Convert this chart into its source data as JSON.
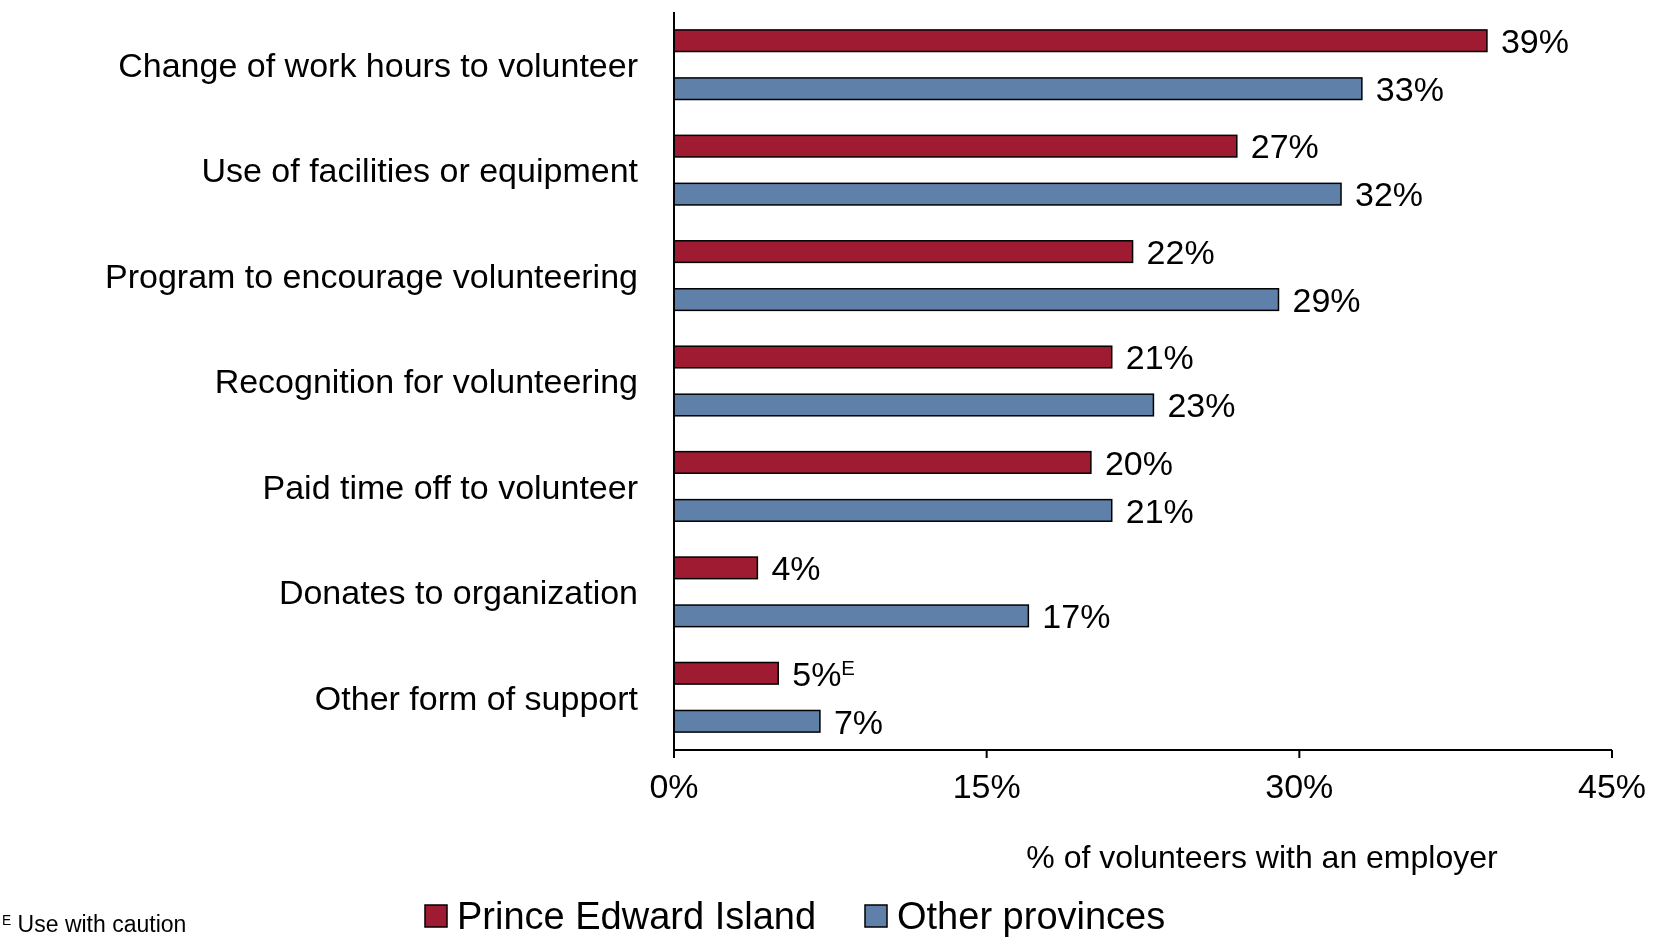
{
  "chart_data": {
    "type": "bar",
    "orientation": "horizontal",
    "categories": [
      "Change of work hours to volunteer",
      "Use of facilities or equipment",
      "Program to encourage volunteering",
      "Recognition for volunteering",
      "Paid time off to volunteer",
      "Donates to organization",
      "Other form of support"
    ],
    "series": [
      {
        "name": "Prince Edward Island",
        "color": "#9e1b32",
        "values": [
          39,
          27,
          22,
          21,
          20,
          4,
          5
        ],
        "value_labels": [
          "39%",
          "27%",
          "22%",
          "21%",
          "20%",
          "4%",
          "5%$^{E}$"
        ]
      },
      {
        "name": "Other provinces",
        "color": "#5f81a9",
        "values": [
          33,
          32,
          29,
          23,
          21,
          17,
          7
        ],
        "value_labels": [
          "33%",
          "32%",
          "29%",
          "23%",
          "21%",
          "17%",
          "7%"
        ]
      }
    ],
    "xlim": [
      0,
      45
    ],
    "xticks": [
      {
        "value": 0,
        "label": "0%"
      },
      {
        "value": 15,
        "label": "15%"
      },
      {
        "value": 30,
        "label": "30%"
      },
      {
        "value": 45,
        "label": "45%"
      }
    ],
    "xlabel": "% of volunteers with an employer",
    "legend": "bottom",
    "grid": false,
    "annotations": [
      "$^{E}$ Use with caution"
    ]
  }
}
